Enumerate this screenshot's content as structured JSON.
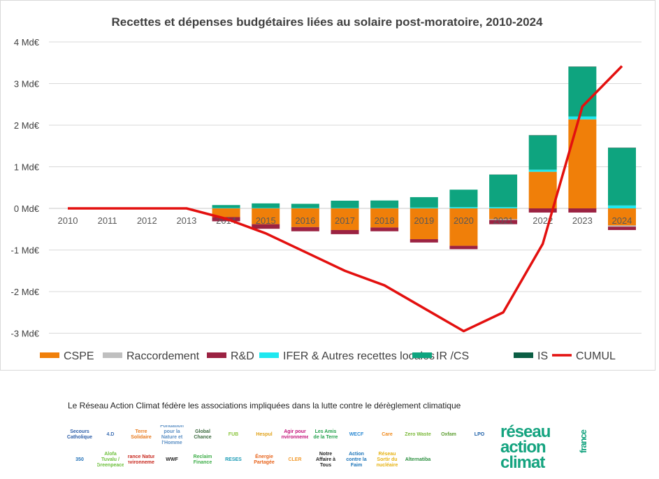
{
  "chart_data": {
    "type": "bar",
    "title": "Recettes et dépenses budgétaires liées au solaire post-moratoire, 2010-2024",
    "categories": [
      "2010",
      "2011",
      "2012",
      "2013",
      "2014",
      "2015",
      "2016",
      "2017",
      "2018",
      "2019",
      "2020",
      "2021",
      "2022",
      "2023",
      "2024"
    ],
    "ylim": [
      -3,
      4
    ],
    "yticks": [
      4,
      3,
      2,
      1,
      0,
      -1,
      -2,
      -3
    ],
    "ytick_labels": [
      "4 Md€",
      "3 Md€",
      "2 Md€",
      "1 Md€",
      "0 Md€",
      "-1 Md€",
      "-2 Md€",
      "-3 Md€"
    ],
    "grid": true,
    "legend_position": "bottom",
    "stacked": true,
    "series": [
      {
        "name": "CSPE",
        "type": "bar",
        "color": "#f07f09",
        "values": [
          0,
          0,
          0,
          0,
          -0.21,
          -0.38,
          -0.45,
          -0.52,
          -0.46,
          -0.74,
          -0.9,
          -0.26,
          0.88,
          2.14,
          -0.41
        ]
      },
      {
        "name": "Raccordement",
        "type": "bar",
        "color": "#bfbfbf",
        "values": [
          0,
          0,
          0,
          0,
          0,
          0,
          0,
          0,
          0,
          0,
          0,
          -0.02,
          0,
          0,
          -0.03
        ]
      },
      {
        "name": "R&D",
        "type": "bar",
        "color": "#9b2242",
        "values": [
          0,
          0,
          0,
          0,
          -0.1,
          -0.11,
          -0.1,
          -0.1,
          -0.09,
          -0.08,
          -0.08,
          -0.1,
          -0.1,
          -0.1,
          -0.08
        ]
      },
      {
        "name": "IFER & Autres recettes locales",
        "type": "bar",
        "color": "#1ee8f0",
        "values": [
          0,
          0,
          0,
          0,
          0.01,
          0.01,
          0.01,
          0.01,
          0.01,
          0.02,
          0.03,
          0.03,
          0.05,
          0.07,
          0.07
        ]
      },
      {
        "name": "IR /CS",
        "type": "bar",
        "color": "#0ea47f",
        "values": [
          0,
          0,
          0,
          0,
          0.07,
          0.11,
          0.1,
          0.175,
          0.18,
          0.25,
          0.42,
          0.78,
          0.82,
          1.19,
          1.38
        ]
      },
      {
        "name": "IS",
        "type": "bar",
        "color": "#0b5e44",
        "values": [
          0,
          0,
          0,
          0,
          0,
          0,
          0,
          0,
          0,
          0,
          0,
          0.005,
          0.01,
          0.01,
          0.01
        ]
      },
      {
        "name": "CUMUL",
        "type": "line",
        "color": "#e3100f",
        "values": [
          0,
          0,
          0,
          0,
          -0.25,
          -0.6,
          -1.05,
          -1.5,
          -1.85,
          -2.4,
          -2.95,
          -2.5,
          -0.85,
          2.45,
          3.42
        ]
      }
    ]
  },
  "footer": {
    "text": "Le Réseau Action Climat fédère les associations impliquées dans la lutte contre le dérèglement climatique",
    "logos": [
      {
        "name": "Secours Catholique",
        "color": "#2d5ea8"
      },
      {
        "name": "4.D",
        "color": "#3e6fb3"
      },
      {
        "name": "Terre Solidaire",
        "color": "#e87a1d"
      },
      {
        "name": "Fondation pour la Nature et l'Homme",
        "color": "#5b8fc4"
      },
      {
        "name": "Global Chance",
        "color": "#3c6a3f"
      },
      {
        "name": "FUB",
        "color": "#8cc63f"
      },
      {
        "name": "Hespul",
        "color": "#e0a21a"
      },
      {
        "name": "Agir pour l'environnement",
        "color": "#c4147b"
      },
      {
        "name": "Les Amis de la Terre",
        "color": "#20a04a"
      },
      {
        "name": "WECF",
        "color": "#2e8bd3"
      },
      {
        "name": "Care",
        "color": "#f08a1d"
      },
      {
        "name": "Zero Waste",
        "color": "#7bb93a"
      },
      {
        "name": "Oxfam",
        "color": "#5c9e31"
      },
      {
        "name": "LPO",
        "color": "#1b5ea7"
      },
      {
        "name": "350",
        "color": "#1f6fb7"
      },
      {
        "name": "Alofa Tuvalu / Greenpeace",
        "color": "#6cbf3a"
      },
      {
        "name": "France Nature Environnement",
        "color": "#c8281e"
      },
      {
        "name": "WWF",
        "color": "#222222"
      },
      {
        "name": "Reclaim Finance",
        "color": "#3fae49"
      },
      {
        "name": "RESES",
        "color": "#1a9bb5"
      },
      {
        "name": "Énergie Partagée",
        "color": "#e8641c"
      },
      {
        "name": "CLER",
        "color": "#f29b2e"
      },
      {
        "name": "Notre Affaire à Tous",
        "color": "#222222"
      },
      {
        "name": "Action contre la Faim",
        "color": "#1a73b8"
      },
      {
        "name": "Réseau Sortir du nucléaire",
        "color": "#e6b212"
      },
      {
        "name": "Alternatiba",
        "color": "#2a8f3e"
      }
    ],
    "rac_logo": {
      "line1": "réseau",
      "line2": "action",
      "line3": "climat",
      "side": "france"
    }
  }
}
